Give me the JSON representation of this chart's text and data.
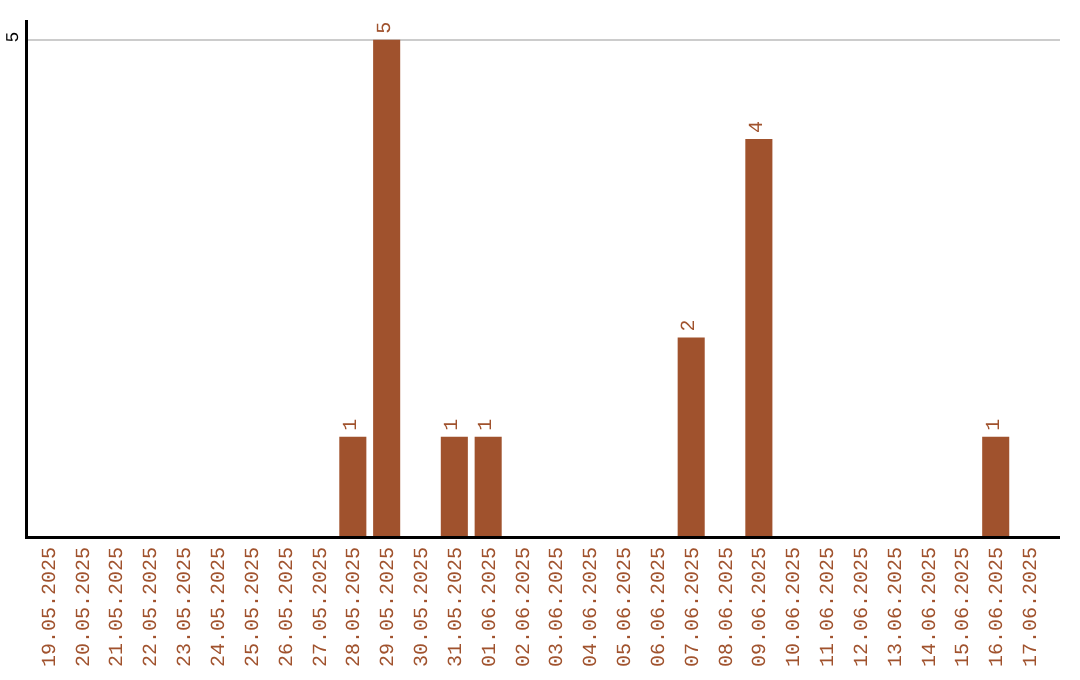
{
  "chart_data": {
    "type": "bar",
    "categories": [
      "19.05.2025",
      "20.05.2025",
      "21.05.2025",
      "22.05.2025",
      "23.05.2025",
      "24.05.2025",
      "25.05.2025",
      "26.05.2025",
      "27.05.2025",
      "28.05.2025",
      "29.05.2025",
      "30.05.2025",
      "31.05.2025",
      "01.06.2025",
      "02.06.2025",
      "03.06.2025",
      "04.06.2025",
      "05.06.2025",
      "06.06.2025",
      "07.06.2025",
      "08.06.2025",
      "09.06.2025",
      "10.06.2025",
      "11.06.2025",
      "12.06.2025",
      "13.06.2025",
      "14.06.2025",
      "15.06.2025",
      "16.06.2025",
      "17.06.2025"
    ],
    "values": [
      0,
      0,
      0,
      0,
      0,
      0,
      0,
      0,
      0,
      1,
      5,
      0,
      1,
      1,
      0,
      0,
      0,
      0,
      0,
      2,
      0,
      4,
      0,
      0,
      0,
      0,
      0,
      0,
      1,
      0
    ],
    "value_labels": [
      null,
      null,
      null,
      null,
      null,
      null,
      null,
      null,
      null,
      "1",
      "5",
      null,
      "1",
      "1",
      null,
      null,
      null,
      null,
      null,
      "2",
      null,
      "4",
      null,
      null,
      null,
      null,
      null,
      null,
      "1",
      null
    ],
    "color": "#a0522d",
    "ylim": [
      0,
      5.2
    ],
    "yticks": [
      5
    ],
    "grid": "y",
    "legend": false
  }
}
